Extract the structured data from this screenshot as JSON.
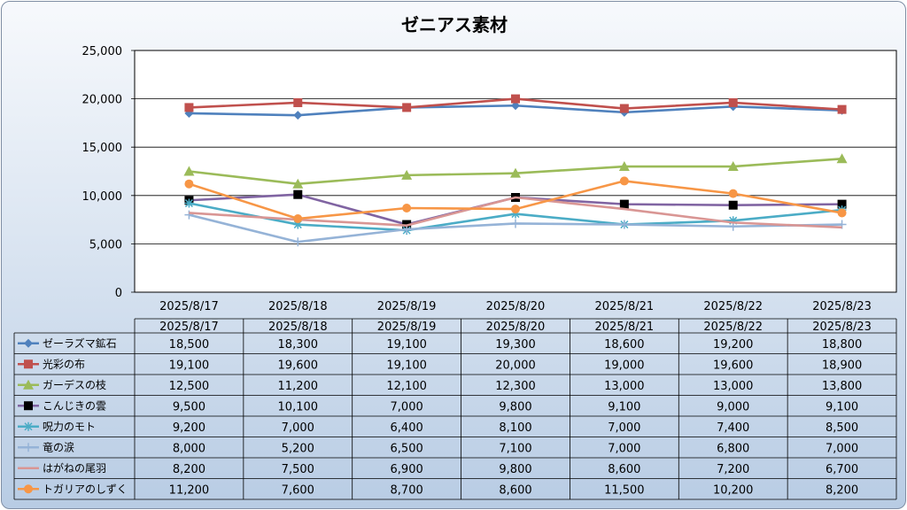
{
  "chart_data": {
    "type": "line",
    "title": "ゼニアス素材",
    "categories": [
      "2025/8/17",
      "2025/8/18",
      "2025/8/19",
      "2025/8/20",
      "2025/8/21",
      "2025/8/22",
      "2025/8/23"
    ],
    "y_ticks": [
      "25,000",
      "20,000",
      "15,000",
      "10,000",
      "5,000",
      "0"
    ],
    "ylim": [
      0,
      25000
    ],
    "grid": true,
    "legend": "data-table",
    "series": [
      {
        "name": "ゼーラズマ鉱石",
        "color": "#4f81bd",
        "marker": "diamond",
        "values": [
          18500,
          18300,
          19100,
          19300,
          18600,
          19200,
          18800
        ],
        "labels": [
          "18,500",
          "18,300",
          "19,100",
          "19,300",
          "18,600",
          "19,200",
          "18,800"
        ]
      },
      {
        "name": "光彩の布",
        "color": "#c0504d",
        "marker": "square",
        "values": [
          19100,
          19600,
          19100,
          20000,
          19000,
          19600,
          18900
        ],
        "labels": [
          "19,100",
          "19,600",
          "19,100",
          "20,000",
          "19,000",
          "19,600",
          "18,900"
        ]
      },
      {
        "name": "ガーデスの枝",
        "color": "#9bbb59",
        "marker": "triangle",
        "values": [
          12500,
          11200,
          12100,
          12300,
          13000,
          13000,
          13800
        ],
        "labels": [
          "12,500",
          "11,200",
          "12,100",
          "12,300",
          "13,000",
          "13,000",
          "13,800"
        ]
      },
      {
        "name": "こんじきの雲",
        "color": "#8064a2",
        "marker": "blacksquare",
        "values": [
          9500,
          10100,
          7000,
          9800,
          9100,
          9000,
          9100
        ],
        "labels": [
          "9,500",
          "10,100",
          "7,000",
          "9,800",
          "9,100",
          "9,000",
          "9,100"
        ]
      },
      {
        "name": "呪力のモト",
        "color": "#4bacc6",
        "marker": "star",
        "values": [
          9200,
          7000,
          6400,
          8100,
          7000,
          7400,
          8500
        ],
        "labels": [
          "9,200",
          "7,000",
          "6,400",
          "8,100",
          "7,000",
          "7,400",
          "8,500"
        ]
      },
      {
        "name": "竜の涙",
        "color": "#95b3d7",
        "marker": "plus",
        "values": [
          8000,
          5200,
          6500,
          7100,
          7000,
          6800,
          7000
        ],
        "labels": [
          "8,000",
          "5,200",
          "6,500",
          "7,100",
          "7,000",
          "6,800",
          "7,000"
        ]
      },
      {
        "name": "はがねの尾羽",
        "color": "#d99694",
        "marker": "none",
        "values": [
          8200,
          7500,
          6900,
          9800,
          8600,
          7200,
          6700
        ],
        "labels": [
          "8,200",
          "7,500",
          "6,900",
          "9,800",
          "8,600",
          "7,200",
          "6,700"
        ]
      },
      {
        "name": "トガリアのしずく",
        "color": "#f79646",
        "marker": "circle",
        "values": [
          11200,
          7600,
          8700,
          8600,
          11500,
          10200,
          8200
        ],
        "labels": [
          "11,200",
          "7,600",
          "8,700",
          "8,600",
          "11,500",
          "10,200",
          "8,200"
        ]
      }
    ]
  }
}
